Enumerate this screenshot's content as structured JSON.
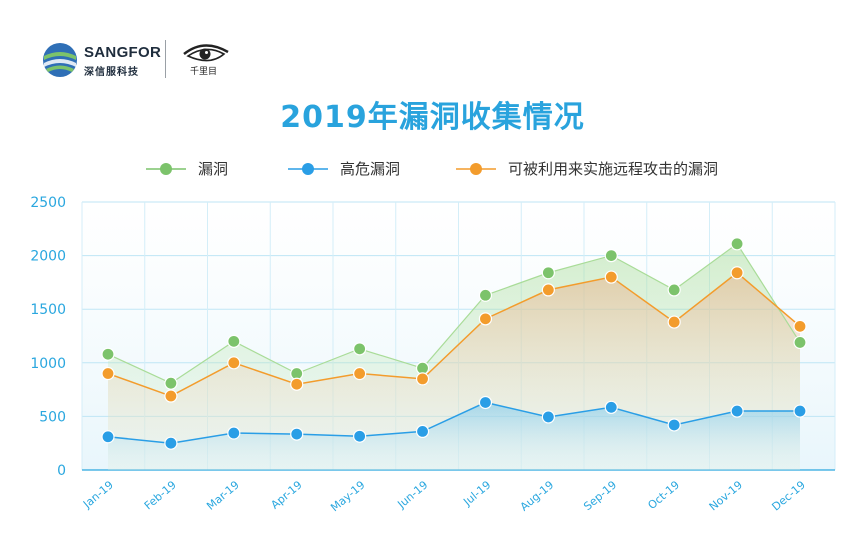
{
  "logo": {
    "brand": "SANGFOR",
    "brand_sub": "深信服科技",
    "partner_mark": "千里目"
  },
  "colors": {
    "title": "#29a3dd",
    "axis": "#2aa7df",
    "grid": "#bfe6f5",
    "vuln": "#7cc36b",
    "high": "#2a9ee6",
    "remote": "#f39c2c"
  },
  "chart_data": {
    "type": "line",
    "title": "2019年漏洞收集情况",
    "xlabel": "",
    "ylabel": "",
    "ylim": [
      0,
      2500
    ],
    "yticks": [
      0,
      500,
      1000,
      1500,
      2000,
      2500
    ],
    "grid": true,
    "legend_position": "top",
    "categories": [
      "Jan-19",
      "Feb-19",
      "Mar-19",
      "Apr-19",
      "May-19",
      "Jun-19",
      "Jul-19",
      "Aug-19",
      "Sep-19",
      "Oct-19",
      "Nov-19",
      "Dec-19"
    ],
    "series": [
      {
        "name": "漏洞",
        "color": "#7cc36b",
        "values": [
          1080,
          810,
          1200,
          900,
          1130,
          950,
          1630,
          1840,
          2000,
          1680,
          2110,
          1190
        ]
      },
      {
        "name": "高危漏洞",
        "color": "#2a9ee6",
        "values": [
          310,
          250,
          345,
          335,
          315,
          360,
          630,
          495,
          585,
          420,
          550,
          550
        ]
      },
      {
        "name": "可被利用来实施远程攻击的漏洞",
        "color": "#f39c2c",
        "values": [
          900,
          690,
          1000,
          800,
          900,
          850,
          1410,
          1680,
          1800,
          1380,
          1840,
          1340
        ]
      }
    ]
  }
}
